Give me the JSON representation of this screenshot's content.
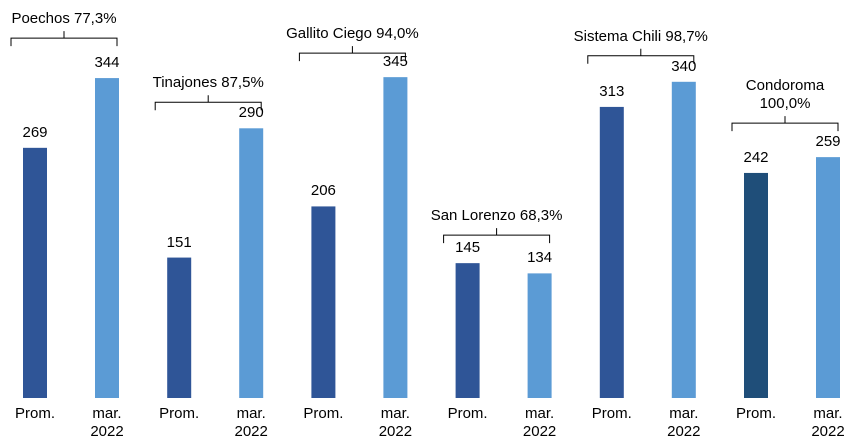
{
  "chart_data": {
    "type": "grouped-bar",
    "bar_labels": [
      "Prom.",
      "mar. 2022"
    ],
    "groups": [
      {
        "name": "Poechos 77,3%",
        "values": [
          269,
          344
        ],
        "colors": [
          "#2f5597",
          "#5b9bd5"
        ]
      },
      {
        "name": "Tinajones 87,5%",
        "values": [
          151,
          290
        ],
        "colors": [
          "#2f5597",
          "#5b9bd5"
        ]
      },
      {
        "name": "Gallito Ciego 94,0%",
        "values": [
          206,
          345
        ],
        "colors": [
          "#2f5597",
          "#5b9bd5"
        ]
      },
      {
        "name": "San Lorenzo 68,3%",
        "values": [
          145,
          134
        ],
        "colors": [
          "#2f5597",
          "#5b9bd5"
        ]
      },
      {
        "name": "Sistema Chili 98,7%",
        "values": [
          313,
          340
        ],
        "colors": [
          "#2f5597",
          "#5b9bd5"
        ]
      },
      {
        "name": "Condoroma 100,0%",
        "values": [
          242,
          259
        ],
        "colors": [
          "#1f4e79",
          "#5b9bd5"
        ]
      }
    ],
    "ylim": [
      0,
      400
    ]
  }
}
